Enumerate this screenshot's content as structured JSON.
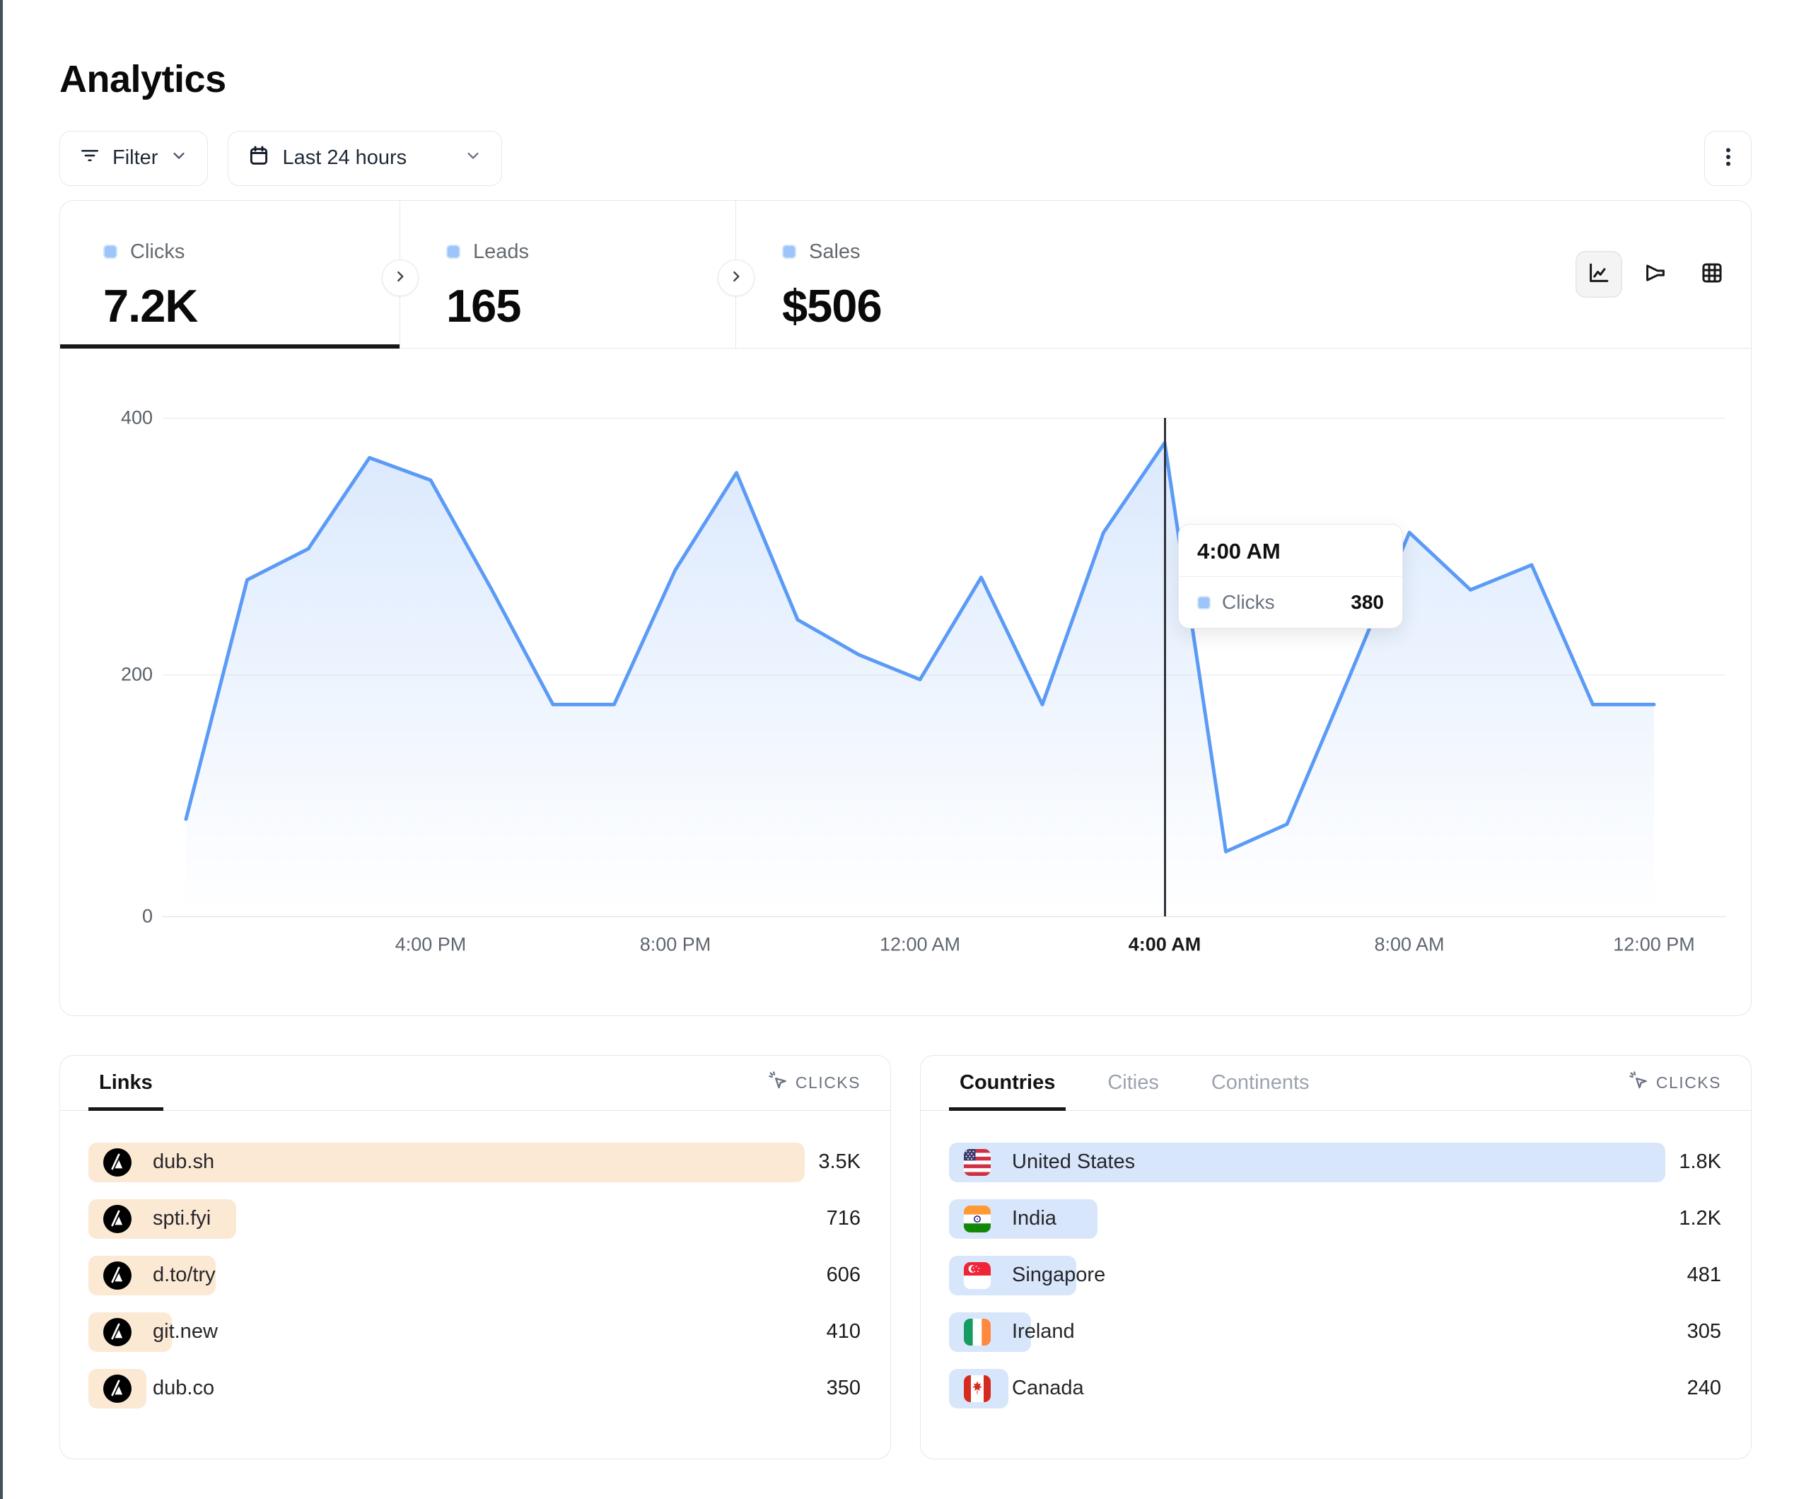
{
  "page": {
    "title": "Analytics"
  },
  "toolbar": {
    "filter": {
      "label": "Filter",
      "icon": "filter-lines-icon"
    },
    "date_range": {
      "label": "Last 24 hours",
      "icon": "calendar-icon"
    },
    "more_menu": {
      "icon": "kebab-vertical-icon"
    }
  },
  "stats": {
    "tabs": [
      {
        "label": "Clicks",
        "value": "7.2K",
        "active": true
      },
      {
        "label": "Leads",
        "value": "165",
        "active": false
      },
      {
        "label": "Sales",
        "value": "$506",
        "active": false
      }
    ],
    "view_toggles": [
      {
        "name": "line-chart-view",
        "icon": "line-chart-icon",
        "active": true
      },
      {
        "name": "funnel-view",
        "icon": "funnel-icon",
        "active": false
      },
      {
        "name": "table-view",
        "icon": "table-grid-icon",
        "active": false
      }
    ]
  },
  "chart": {
    "y_ticks": [
      "400",
      "200",
      "0"
    ],
    "x_labels": [
      "4:00 PM",
      "8:00 PM",
      "12:00 AM",
      "4:00 AM",
      "8:00 AM",
      "12:00 PM"
    ],
    "highlighted_x_label": "4:00 AM"
  },
  "tooltip": {
    "time": "4:00 AM",
    "series_label": "Clicks",
    "value": "380"
  },
  "chart_data": {
    "type": "area",
    "title": "Clicks over the last 24 hours",
    "x": [
      "12:00 PM",
      "1:00 PM",
      "2:00 PM",
      "3:00 PM",
      "4:00 PM",
      "5:00 PM",
      "6:00 PM",
      "7:00 PM",
      "8:00 PM",
      "9:00 PM",
      "10:00 PM",
      "11:00 PM",
      "12:00 AM",
      "1:00 AM",
      "2:00 AM",
      "3:00 AM",
      "4:00 AM",
      "5:00 AM",
      "6:00 AM",
      "7:00 AM",
      "8:00 AM",
      "9:00 AM",
      "10:00 AM",
      "11:00 AM",
      "12:00 PM"
    ],
    "series": [
      {
        "name": "Clicks",
        "values": [
          78,
          270,
          295,
          368,
          350,
          262,
          170,
          170,
          278,
          356,
          238,
          210,
          190,
          272,
          170,
          308,
          380,
          52,
          74,
          190,
          308,
          262,
          282,
          170,
          170
        ]
      }
    ],
    "ylim": [
      0,
      400
    ],
    "grid": true,
    "legend_position": "none",
    "line_color": "#5b9bf6",
    "highlight_point": {
      "x": "4:00 AM",
      "y": 380
    }
  },
  "links_panel": {
    "tabs": [
      "Links"
    ],
    "active_tab": "Links",
    "sort_label": "CLICKS",
    "sort_icon": "cursor-click-icon",
    "bar_color": "#fce9d4",
    "rows": [
      {
        "label": "dub.sh",
        "value": "3.5K",
        "bar_pct": 100,
        "icon": "dub-logo-icon"
      },
      {
        "label": "spti.fyi",
        "value": "716",
        "bar_pct": 20.6,
        "icon": "dub-logo-icon"
      },
      {
        "label": "d.to/try",
        "value": "606",
        "bar_pct": 17.8,
        "icon": "dub-logo-icon"
      },
      {
        "label": "git.new",
        "value": "410",
        "bar_pct": 11.6,
        "icon": "dub-logo-icon"
      },
      {
        "label": "dub.co",
        "value": "350",
        "bar_pct": 8.1,
        "icon": "dub-logo-icon"
      }
    ]
  },
  "countries_panel": {
    "tabs": [
      "Countries",
      "Cities",
      "Continents"
    ],
    "active_tab": "Countries",
    "sort_label": "CLICKS",
    "sort_icon": "cursor-click-icon",
    "bar_color": "#d8e6fb",
    "rows": [
      {
        "label": "United States",
        "value": "1.8K",
        "bar_pct": 100,
        "flag": "us"
      },
      {
        "label": "India",
        "value": "1.2K",
        "bar_pct": 20.7,
        "flag": "in"
      },
      {
        "label": "Singapore",
        "value": "481",
        "bar_pct": 17.8,
        "flag": "sg"
      },
      {
        "label": "Ireland",
        "value": "305",
        "bar_pct": 11.5,
        "flag": "ie"
      },
      {
        "label": "Canada",
        "value": "240",
        "bar_pct": 8.3,
        "flag": "ca"
      }
    ]
  },
  "colors": {
    "accent_blue": "#5b9bf6",
    "legend_square_fill": "#9cc5f9",
    "links_bar": "#fce9d4",
    "countries_bar": "#d8e6fb",
    "active_underline": "#171717",
    "left_edge_strip": "#42525a"
  }
}
